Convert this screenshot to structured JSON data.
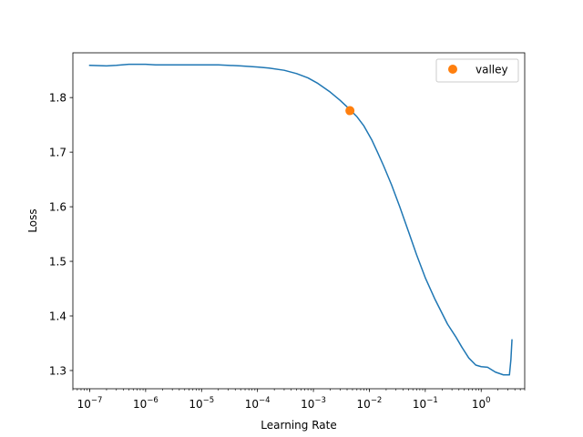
{
  "chart_data": {
    "type": "line",
    "xscale": "log",
    "xlim": [
      5e-08,
      6.0
    ],
    "ylim": [
      1.2666,
      1.882
    ],
    "xlabel": "Learning Rate",
    "ylabel": "Loss",
    "grid": false,
    "legend_position": "upper-right",
    "x_ticks": [
      {
        "value": 1e-07,
        "base": "10",
        "exp": "−7"
      },
      {
        "value": 1e-06,
        "base": "10",
        "exp": "−6"
      },
      {
        "value": 1e-05,
        "base": "10",
        "exp": "−5"
      },
      {
        "value": 0.0001,
        "base": "10",
        "exp": "−4"
      },
      {
        "value": 0.001,
        "base": "10",
        "exp": "−3"
      },
      {
        "value": 0.01,
        "base": "10",
        "exp": "−2"
      },
      {
        "value": 0.1,
        "base": "10",
        "exp": "−1"
      },
      {
        "value": 1,
        "base": "10",
        "exp": "0"
      }
    ],
    "y_ticks": [
      {
        "value": 1.3,
        "label": "1.3"
      },
      {
        "value": 1.4,
        "label": "1.4"
      },
      {
        "value": 1.5,
        "label": "1.5"
      },
      {
        "value": 1.6,
        "label": "1.6"
      },
      {
        "value": 1.7,
        "label": "1.7"
      },
      {
        "value": 1.8,
        "label": "1.8"
      }
    ],
    "series": [
      {
        "color": "#1f77b4",
        "x": [
          1e-07,
          2e-07,
          3e-07,
          5e-07,
          8e-07,
          1e-06,
          1.5e-06,
          3e-06,
          1e-05,
          2e-05,
          5e-05,
          0.0001,
          0.00016,
          0.0003,
          0.0005,
          0.0008,
          0.0012,
          0.002,
          0.003,
          0.0045,
          0.006,
          0.008,
          0.011,
          0.014,
          0.018,
          0.025,
          0.035,
          0.05,
          0.07,
          0.1,
          0.15,
          0.25,
          0.35,
          0.45,
          0.6,
          0.8,
          1.0,
          1.3,
          1.8,
          2.5,
          3.2,
          3.4,
          3.55
        ],
        "y": [
          1.859,
          1.858,
          1.859,
          1.861,
          1.861,
          1.861,
          1.86,
          1.86,
          1.86,
          1.86,
          1.858,
          1.856,
          1.854,
          1.85,
          1.844,
          1.836,
          1.826,
          1.81,
          1.795,
          1.778,
          1.765,
          1.748,
          1.723,
          1.7,
          1.675,
          1.64,
          1.6,
          1.555,
          1.512,
          1.47,
          1.43,
          1.385,
          1.362,
          1.343,
          1.323,
          1.31,
          1.307,
          1.306,
          1.297,
          1.292,
          1.292,
          1.32,
          1.356
        ]
      }
    ],
    "markers": [
      {
        "name": "valley",
        "x": 0.0045,
        "y": 1.776,
        "color": "#ff7f0e"
      }
    ]
  }
}
